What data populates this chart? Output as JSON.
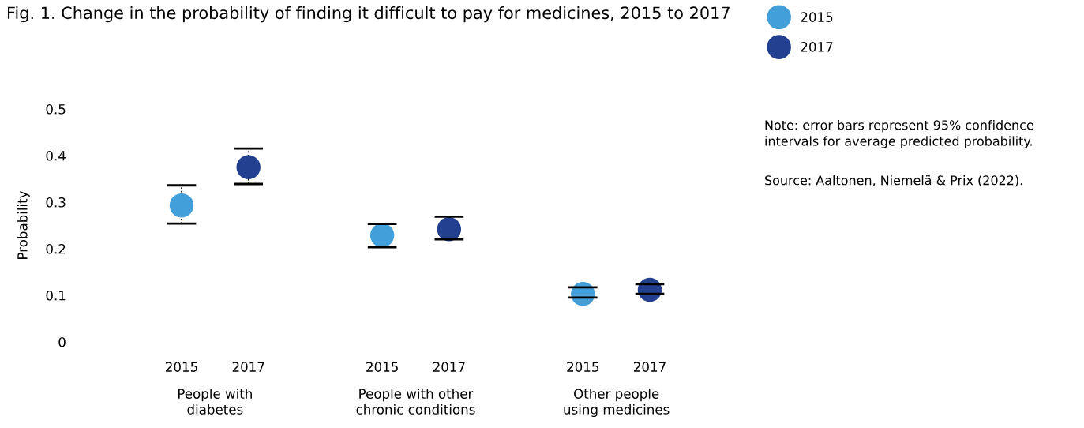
{
  "chart_data": {
    "type": "scatter",
    "title": "Fig. 1. Change in the probability of finding it difficult to pay for medicines, 2015 to 2017",
    "ylabel": "Probability",
    "categories": [
      "2015",
      "2017",
      null,
      "2015",
      "2017",
      null,
      "2015",
      "2017"
    ],
    "series": [
      {
        "name": "2015",
        "color": "#429fd9",
        "values": [
          0.293,
          null,
          null,
          0.229,
          null,
          null,
          0.103,
          null
        ],
        "errors": [
          [
            0.254,
            0.336
          ],
          null,
          null,
          [
            0.203,
            0.253
          ],
          null,
          null,
          [
            0.095,
            0.117
          ],
          null
        ]
      },
      {
        "name": "2017",
        "color": "#233f8f",
        "values": [
          null,
          0.375,
          null,
          null,
          0.242,
          null,
          null,
          0.112
        ],
        "errors": [
          null,
          [
            0.339,
            0.415
          ],
          null,
          null,
          [
            0.22,
            0.269
          ],
          null,
          null,
          [
            0.103,
            0.124
          ]
        ]
      }
    ],
    "ylim": [
      0,
      0.5
    ],
    "yticks": [
      {
        "value": 0,
        "label": "0"
      },
      0.1,
      0.2,
      0.3,
      0.4,
      0.5
    ],
    "marker": "circle",
    "grid": false,
    "legend": "top right",
    "annotations": [
      "People with\ndiabetes",
      "People with other\nchronic conditions",
      "Other people\nusing medicines",
      "Note: error bars represent 95% confidence\nintervals for average predicted probability.",
      "Source: Aaltonen, Niemelä & Prix (2022)."
    ]
  }
}
